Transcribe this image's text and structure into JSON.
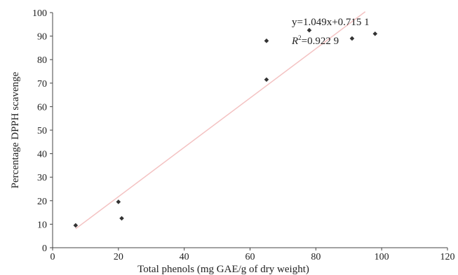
{
  "chart_data": {
    "type": "scatter",
    "title": "",
    "xlabel": "Total phenols (mg GAE/g of dry weight)",
    "ylabel": "Percentage DPPH scavenge",
    "xlim": [
      0,
      120
    ],
    "ylim": [
      0,
      100
    ],
    "xticks": [
      "0",
      "20",
      "40",
      "60",
      "80",
      "100",
      "120"
    ],
    "yticks": [
      "0",
      "10",
      "20",
      "30",
      "40",
      "50",
      "60",
      "70",
      "80",
      "90",
      "100"
    ],
    "grid": false,
    "legend": "none",
    "series": [
      {
        "x": [
          7,
          20,
          21,
          65,
          65,
          78,
          91,
          98
        ],
        "y": [
          9.5,
          19.5,
          12.5,
          88,
          71.5,
          92.5,
          89,
          91
        ],
        "color": "#333333"
      }
    ],
    "trendline": {
      "slope": 1.049,
      "intercept": 0.7151,
      "x_range": [
        7,
        95
      ],
      "color": "#f4c2c2"
    },
    "annotations": {
      "equation": "y=1.049x+0.715 1",
      "r2_symbol": "R",
      "r2_sup": "2",
      "r2_value": "=0.922 9"
    }
  }
}
